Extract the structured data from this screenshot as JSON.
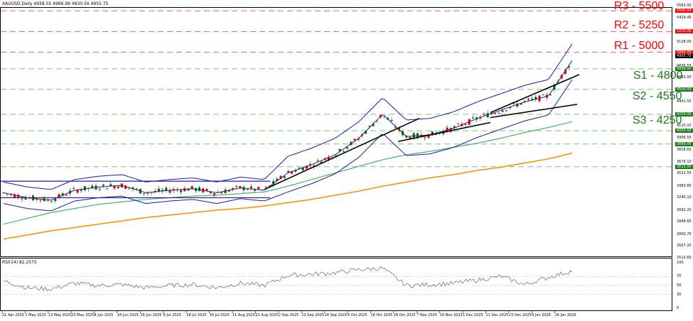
{
  "header": {
    "title": "XAUUSD,Daily  4938.55 4966.99 4930.56 4955.75"
  },
  "rsi": {
    "title": "RSI(14) 82.2575",
    "levels": [
      "100",
      "70",
      "50",
      "30",
      "0"
    ]
  },
  "levels": {
    "r3": {
      "label": "R3 - 5500",
      "tag": "5500.00"
    },
    "r2": {
      "label": "R2 - 5250",
      "tag": "5250.00"
    },
    "r1": {
      "label": "R1 - 5000",
      "tag": "5000.00"
    },
    "s1": {
      "label": "S1 - 4800",
      "tag": "4800.00"
    },
    "s2": {
      "label": "S2 - 4550",
      "tag": "4550.00"
    },
    "s3": {
      "label": "S3 - 4250",
      "tag": "4250.00"
    },
    "s4": {
      "tag": "4050.00"
    },
    "s5": {
      "tag": "3890.00"
    },
    "s6": {
      "tag": "3615.00"
    },
    "price": {
      "tag": "4955.75"
    }
  },
  "yaxis": {
    "ticks": [
      "5563.00",
      "5419.45",
      "5128.00",
      "4836.55",
      "4693.00",
      "4401.55",
      "4110.10",
      "3966.55",
      "3818.65",
      "3675.10",
      "3531.55",
      "3383.65",
      "3240.10",
      "3092.20",
      "2948.65",
      "2800.75",
      "2657.20",
      "2513.65"
    ]
  },
  "xaxis": {
    "ticks": [
      "21 Apr 2025",
      "1 May 2025",
      "13 May 2025",
      "23 May 2025",
      "4 Jun 2025",
      "16 Jun 2025",
      "26 Jun 2025",
      "8 Jul 2025",
      "18 Jul 2025",
      "30 Jul 2025",
      "11 Aug 2025",
      "21 Aug 2025",
      "2 Sep 2025",
      "12 Sep 2025",
      "24 Sep 2025",
      "6 Oct 2025",
      "16 Oct 2025",
      "28 Oct 2025",
      "7 Nov 2025",
      "19 Nov 2025",
      "1 Dec 2025",
      "11 Dec 2025",
      "23 Dec 2025",
      "6 Jan 2026",
      "16 Jan 2026"
    ]
  },
  "colors": {
    "resistance": "#ff0000",
    "support": "#1a7a1a",
    "bollinger": "#1a1aa8",
    "ma_green": "#3cb371",
    "ma_orange": "#ff8c00",
    "bull": "#006400",
    "bear": "#cc0000"
  },
  "chart_data": [
    {
      "type": "line",
      "title": "XAUUSD,Daily",
      "subtitle": "4938.55 4966.99 4930.56 4955.75",
      "xlabel": "",
      "ylabel": "",
      "ylim": [
        2513.65,
        5563.0
      ],
      "categories": [
        "21 Apr 2025",
        "1 May 2025",
        "13 May 2025",
        "23 May 2025",
        "4 Jun 2025",
        "16 Jun 2025",
        "26 Jun 2025",
        "8 Jul 2025",
        "18 Jul 2025",
        "30 Jul 2025",
        "11 Aug 2025",
        "21 Aug 2025",
        "2 Sep 2025",
        "12 Sep 2025",
        "24 Sep 2025",
        "6 Oct 2025",
        "16 Oct 2025",
        "28 Oct 2025",
        "7 Nov 2025",
        "19 Nov 2025",
        "1 Dec 2025",
        "11 Dec 2025",
        "23 Dec 2025",
        "6 Jan 2026",
        "16 Jan 2026"
      ],
      "series": [
        {
          "name": "Close (approx)",
          "values": [
            3300,
            3240,
            3210,
            3330,
            3370,
            3390,
            3300,
            3330,
            3350,
            3300,
            3360,
            3330,
            3540,
            3640,
            3760,
            3960,
            4250,
            3980,
            4000,
            4080,
            4200,
            4300,
            4400,
            4470,
            4900
          ]
        },
        {
          "name": "MA green (approx)",
          "values": [
            2920,
            2990,
            3060,
            3110,
            3160,
            3190,
            3220,
            3240,
            3260,
            3270,
            3290,
            3310,
            3380,
            3460,
            3540,
            3620,
            3700,
            3760,
            3800,
            3850,
            3900,
            3960,
            4030,
            4090,
            4160
          ]
        },
        {
          "name": "MA orange (approx)",
          "values": [
            2740,
            2790,
            2840,
            2880,
            2920,
            2960,
            3000,
            3030,
            3060,
            3090,
            3110,
            3140,
            3180,
            3220,
            3270,
            3320,
            3380,
            3430,
            3480,
            3520,
            3570,
            3610,
            3660,
            3710,
            3780
          ]
        }
      ],
      "horizontal_levels": [
        {
          "label": "R3 - 5500",
          "value": 5500,
          "color": "red"
        },
        {
          "label": "R2 - 5250",
          "value": 5250,
          "color": "red"
        },
        {
          "label": "R1 - 5000",
          "value": 5000,
          "color": "red"
        },
        {
          "label": "S1 - 4800",
          "value": 4800,
          "color": "green"
        },
        {
          "label": "S2 - 4550",
          "value": 4550,
          "color": "green"
        },
        {
          "label": "S3 - 4250",
          "value": 4250,
          "color": "green"
        },
        {
          "label": "",
          "value": 4050,
          "color": "green"
        },
        {
          "label": "",
          "value": 3890,
          "color": "green"
        },
        {
          "label": "",
          "value": 3615,
          "color": "green"
        }
      ],
      "annotations": [
        "Bollinger Bands (blue)",
        "Upward trendlines (black)",
        "Horizontal range channel Apr–Aug 2025 (~3240–3440)"
      ],
      "grid": false,
      "legend": "none"
    },
    {
      "type": "line",
      "title": "RSI(14) 82.2575",
      "ylim": [
        0,
        100
      ],
      "yticks": [
        0,
        30,
        50,
        70,
        100
      ],
      "categories": [
        "21 Apr 2025",
        "1 May 2025",
        "13 May 2025",
        "23 May 2025",
        "4 Jun 2025",
        "16 Jun 2025",
        "26 Jun 2025",
        "8 Jul 2025",
        "18 Jul 2025",
        "30 Jul 2025",
        "11 Aug 2025",
        "21 Aug 2025",
        "2 Sep 2025",
        "12 Sep 2025",
        "24 Sep 2025",
        "6 Oct 2025",
        "16 Oct 2025",
        "28 Oct 2025",
        "7 Nov 2025",
        "19 Nov 2025",
        "1 Dec 2025",
        "11 Dec 2025",
        "23 Dec 2025",
        "6 Jan 2026",
        "16 Jan 2026"
      ],
      "series": [
        {
          "name": "RSI(14)",
          "values": [
            60,
            45,
            42,
            55,
            50,
            52,
            45,
            50,
            52,
            45,
            55,
            50,
            72,
            75,
            78,
            85,
            88,
            50,
            52,
            55,
            62,
            70,
            52,
            68,
            82
          ]
        }
      ]
    }
  ]
}
